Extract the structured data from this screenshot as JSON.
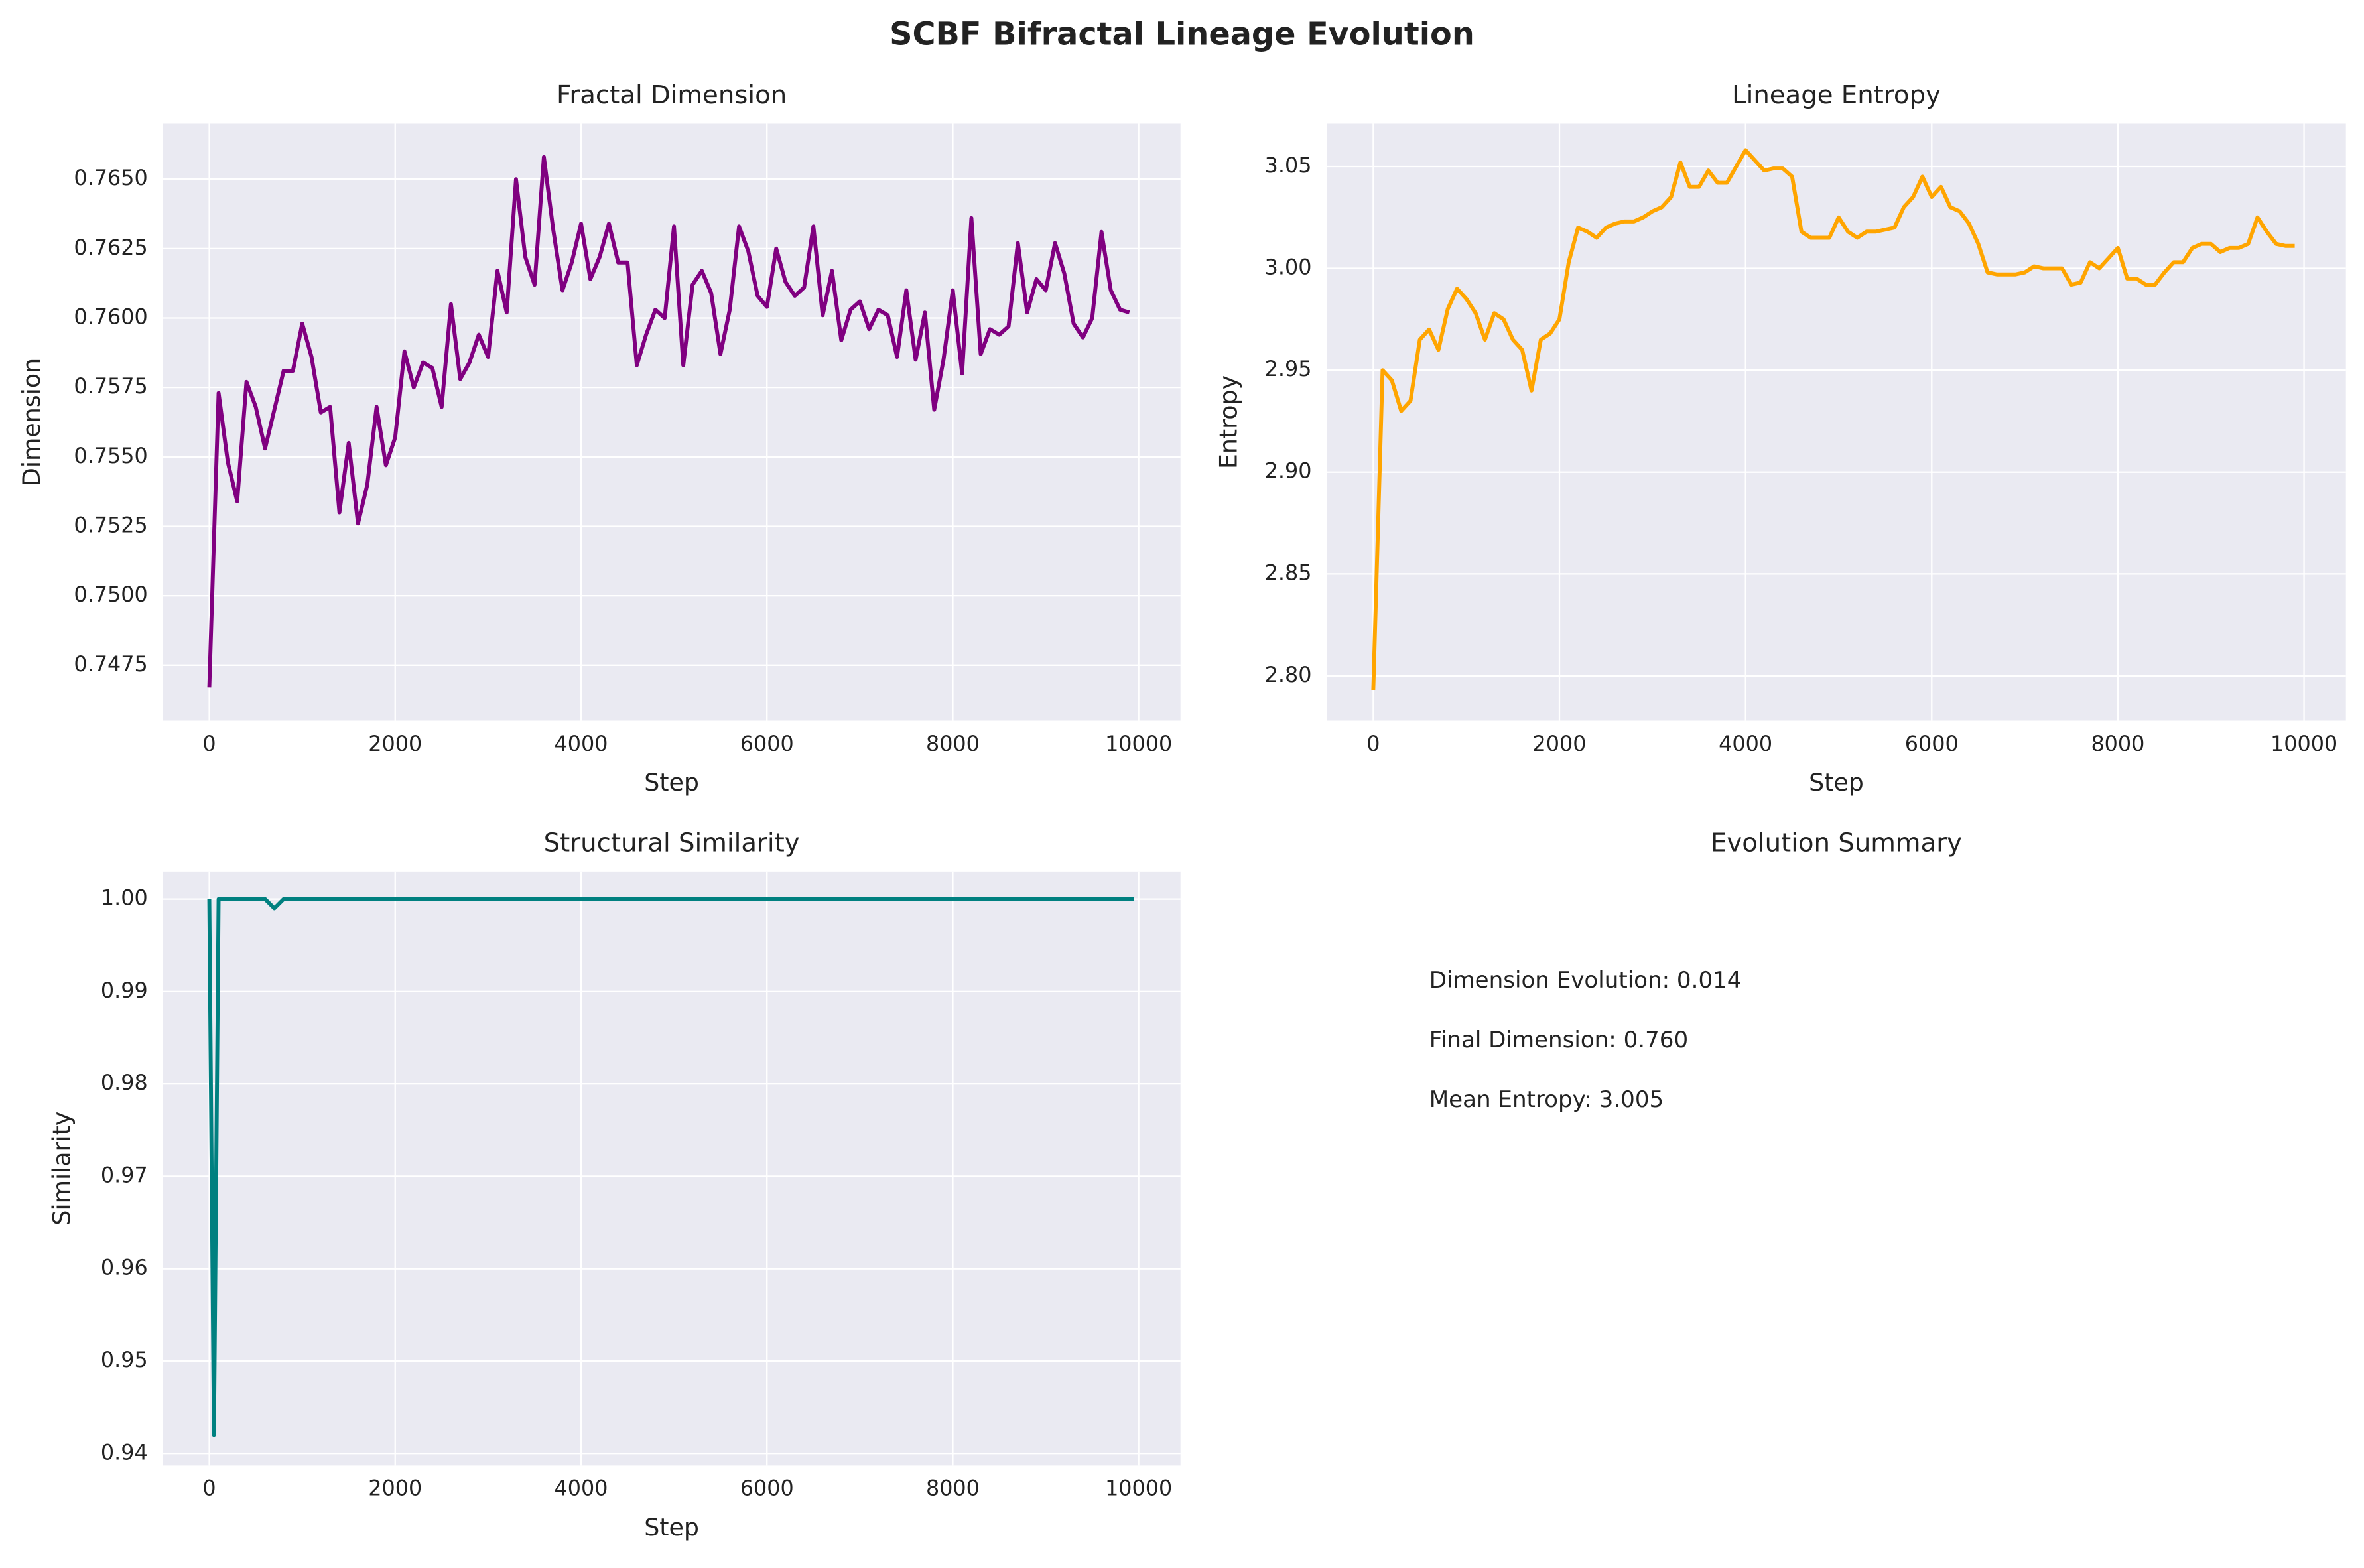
{
  "title": "SCBF Bifractal Lineage Evolution",
  "chart_data": [
    {
      "type": "line",
      "title": "Fractal Dimension",
      "xlabel": "Step",
      "ylabel": "Dimension",
      "color": "#800080",
      "grid": true,
      "x": [
        0,
        100,
        200,
        300,
        400,
        500,
        600,
        700,
        800,
        900,
        1000,
        1100,
        1200,
        1300,
        1400,
        1500,
        1600,
        1700,
        1800,
        1900,
        2000,
        2100,
        2200,
        2300,
        2400,
        2500,
        2600,
        2700,
        2800,
        2900,
        3000,
        3100,
        3200,
        3300,
        3400,
        3500,
        3600,
        3700,
        3800,
        3900,
        4000,
        4100,
        4200,
        4300,
        4400,
        4500,
        4600,
        4700,
        4800,
        4900,
        5000,
        5100,
        5200,
        5300,
        5400,
        5500,
        5600,
        5700,
        5800,
        5900,
        6000,
        6100,
        6200,
        6300,
        6400,
        6500,
        6600,
        6700,
        6800,
        6900,
        7000,
        7100,
        7200,
        7300,
        7400,
        7500,
        7600,
        7700,
        7800,
        7900,
        8000,
        8100,
        8200,
        8300,
        8400,
        8500,
        8600,
        8700,
        8800,
        8900,
        9000,
        9100,
        9200,
        9300,
        9400,
        9500,
        9600,
        9700,
        9800,
        9900
      ],
      "values": [
        0.7467,
        0.7573,
        0.7548,
        0.7534,
        0.7577,
        0.7568,
        0.7553,
        0.7567,
        0.7581,
        0.7581,
        0.7598,
        0.7586,
        0.7566,
        0.7568,
        0.753,
        0.7555,
        0.7526,
        0.754,
        0.7568,
        0.7547,
        0.7557,
        0.7588,
        0.7575,
        0.7584,
        0.7582,
        0.7568,
        0.7605,
        0.7578,
        0.7584,
        0.7594,
        0.7586,
        0.7617,
        0.7602,
        0.765,
        0.7622,
        0.7612,
        0.7658,
        0.7632,
        0.761,
        0.762,
        0.7634,
        0.7614,
        0.7622,
        0.7634,
        0.762,
        0.762,
        0.7583,
        0.7594,
        0.7603,
        0.76,
        0.7633,
        0.7583,
        0.7612,
        0.7617,
        0.7609,
        0.7587,
        0.7603,
        0.7633,
        0.7624,
        0.7608,
        0.7604,
        0.7625,
        0.7613,
        0.7608,
        0.7611,
        0.7633,
        0.7601,
        0.7617,
        0.7592,
        0.7603,
        0.7606,
        0.7596,
        0.7603,
        0.7601,
        0.7586,
        0.761,
        0.7585,
        0.7602,
        0.7567,
        0.7585,
        0.761,
        0.758,
        0.7636,
        0.7587,
        0.7596,
        0.7594,
        0.7597,
        0.7627,
        0.7602,
        0.7614,
        0.761,
        0.7627,
        0.7616,
        0.7598,
        0.7593,
        0.76,
        0.7631,
        0.761,
        0.7603,
        0.7602
      ],
      "xlim": [
        -500,
        10450
      ],
      "xticks": [
        0,
        2000,
        4000,
        6000,
        8000,
        10000
      ],
      "ylim": [
        0.7455,
        0.767
      ],
      "yticks": [
        0.7475,
        {
          "value": 0.75,
          "label": "0.7500"
        },
        0.7525,
        {
          "value": 0.755,
          "label": "0.7550"
        },
        0.7575,
        {
          "value": 0.76,
          "label": "0.7600"
        },
        0.7625,
        {
          "value": 0.765,
          "label": "0.7650"
        }
      ]
    },
    {
      "type": "line",
      "title": "Lineage Entropy",
      "xlabel": "Step",
      "ylabel": "Entropy",
      "color": "#FFA500",
      "grid": true,
      "x": [
        0,
        100,
        200,
        300,
        400,
        500,
        600,
        700,
        800,
        900,
        1000,
        1100,
        1200,
        1300,
        1400,
        1500,
        1600,
        1700,
        1800,
        1900,
        2000,
        2100,
        2200,
        2300,
        2400,
        2500,
        2600,
        2700,
        2800,
        2900,
        3000,
        3100,
        3200,
        3300,
        3400,
        3500,
        3600,
        3700,
        3800,
        3900,
        4000,
        4100,
        4200,
        4300,
        4400,
        4500,
        4600,
        4700,
        4800,
        4900,
        5000,
        5100,
        5200,
        5300,
        5400,
        5500,
        5600,
        5700,
        5800,
        5900,
        6000,
        6100,
        6200,
        6300,
        6400,
        6500,
        6600,
        6700,
        6800,
        6900,
        7000,
        7100,
        7200,
        7300,
        7400,
        7500,
        7600,
        7700,
        7800,
        7900,
        8000,
        8100,
        8200,
        8300,
        8400,
        8500,
        8600,
        8700,
        8800,
        8900,
        9000,
        9100,
        9200,
        9300,
        9400,
        9500,
        9600,
        9700,
        9800,
        9900
      ],
      "values": [
        2.793,
        2.95,
        2.945,
        2.93,
        2.935,
        2.965,
        2.97,
        2.96,
        2.98,
        2.99,
        2.985,
        2.978,
        2.965,
        2.978,
        2.975,
        2.965,
        2.96,
        2.94,
        2.965,
        2.968,
        2.975,
        3.003,
        3.02,
        3.018,
        3.015,
        3.02,
        3.022,
        3.023,
        3.023,
        3.025,
        3.028,
        3.03,
        3.035,
        3.052,
        3.04,
        3.04,
        3.048,
        3.042,
        3.042,
        3.05,
        3.058,
        3.053,
        3.048,
        3.049,
        3.049,
        3.045,
        3.018,
        3.015,
        3.015,
        3.015,
        3.025,
        3.018,
        3.015,
        3.018,
        3.018,
        3.019,
        3.02,
        3.03,
        3.035,
        3.045,
        3.035,
        3.04,
        3.03,
        3.028,
        3.022,
        3.012,
        2.998,
        2.997,
        2.997,
        2.997,
        2.998,
        3.001,
        3.0,
        3.0,
        3.0,
        2.992,
        2.993,
        3.003,
        3.0,
        3.005,
        3.01,
        2.995,
        2.995,
        2.992,
        2.992,
        2.998,
        3.003,
        3.003,
        3.01,
        3.012,
        3.012,
        3.008,
        3.01,
        3.01,
        3.012,
        3.025,
        3.018,
        3.012,
        3.011,
        3.011
      ],
      "xlim": [
        -500,
        10450
      ],
      "xticks": [
        0,
        2000,
        4000,
        6000,
        8000,
        10000
      ],
      "ylim": [
        2.778,
        3.071
      ],
      "yticks": [
        {
          "value": 2.8,
          "label": "2.80"
        },
        2.85,
        {
          "value": 2.9,
          "label": "2.90"
        },
        2.95,
        {
          "value": 3.0,
          "label": "3.00"
        },
        3.05
      ]
    },
    {
      "type": "line",
      "title": "Structural Similarity",
      "xlabel": "Step",
      "ylabel": "Similarity",
      "color": "#008080",
      "grid": true,
      "x": [
        0,
        50,
        100,
        600,
        700,
        800,
        1000,
        9950
      ],
      "values": [
        1.0,
        0.942,
        1.0,
        1.0,
        0.999,
        1.0,
        1.0,
        1.0
      ],
      "xlim": [
        -500,
        10450
      ],
      "xticks": [
        0,
        2000,
        4000,
        6000,
        8000,
        10000
      ],
      "ylim": [
        0.9387,
        1.003
      ],
      "yticks": [
        0.94,
        0.95,
        0.96,
        0.97,
        0.98,
        0.99,
        {
          "value": 1.0,
          "label": "1.00"
        }
      ]
    }
  ],
  "summary": {
    "title": "Evolution Summary",
    "lines": [
      "Dimension Evolution: 0.014",
      "Final Dimension: 0.760",
      "Mean Entropy: 3.005"
    ]
  }
}
